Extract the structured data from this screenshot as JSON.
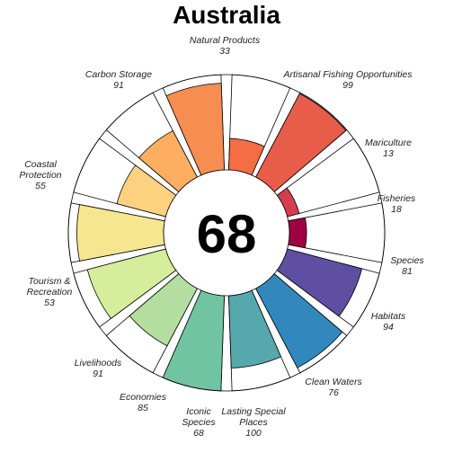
{
  "chart_data": {
    "type": "flower",
    "title": "Australia",
    "score": "68",
    "radial_range": [
      0,
      100
    ],
    "goals": [
      {
        "label": "Natural Products",
        "value": 33,
        "color": "#f46d43"
      },
      {
        "label": "Artisanal Fishing Opportunities",
        "value": 99,
        "color": "#e85c4a"
      },
      {
        "label": "Mariculture",
        "value": 13,
        "color": "#d53e4f"
      },
      {
        "label": "Fisheries",
        "value": 18,
        "color": "#9e0142"
      },
      {
        "label": "Species",
        "value": 81,
        "color": "#5e4fa2"
      },
      {
        "label": "Habitats",
        "value": 94,
        "color": "#3288bd"
      },
      {
        "label": "Clean Waters",
        "value": 76,
        "color": "#55a9ad"
      },
      {
        "label": "Lasting Special Places",
        "value": 100,
        "color": "#70c4a2"
      },
      {
        "label": "Iconic Species",
        "value": 68,
        "color": "#b4de9f"
      },
      {
        "label": "Economies",
        "value": 85,
        "color": "#d6ee9b"
      },
      {
        "label": "Livelihoods",
        "value": 91,
        "color": "#f5e68f"
      },
      {
        "label": "Tourism & Recreation",
        "value": 53,
        "color": "#fdd17f"
      },
      {
        "label": "Coastal Protection",
        "value": 55,
        "color": "#fdae61"
      },
      {
        "label": "Carbon Storage",
        "value": 91,
        "color": "#f88d52"
      }
    ]
  }
}
